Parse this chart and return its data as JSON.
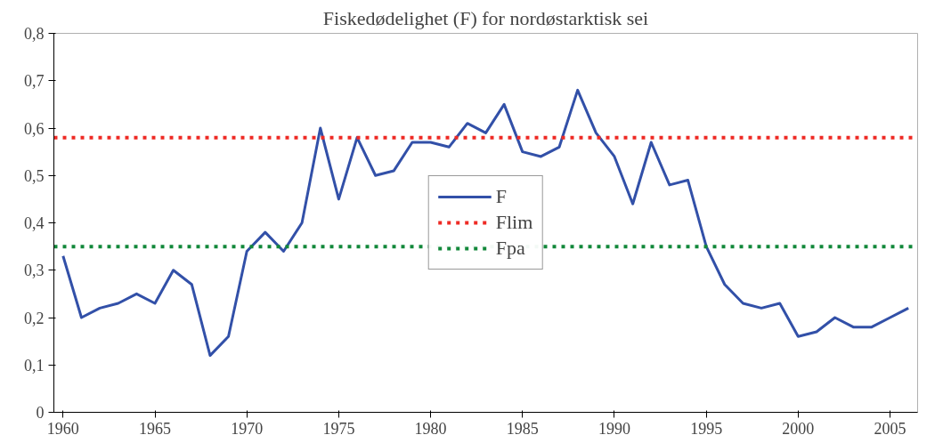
{
  "chart_data": {
    "type": "line",
    "title": "Fiskedødelighet (F) for nordøstarktisk sei",
    "x": [
      1960,
      1961,
      1962,
      1963,
      1964,
      1965,
      1966,
      1967,
      1968,
      1969,
      1970,
      1971,
      1972,
      1973,
      1974,
      1975,
      1976,
      1977,
      1978,
      1979,
      1980,
      1981,
      1982,
      1983,
      1984,
      1985,
      1986,
      1987,
      1988,
      1989,
      1990,
      1991,
      1992,
      1993,
      1994,
      1995,
      1996,
      1997,
      1998,
      1999,
      2000,
      2001,
      2002,
      2003,
      2004,
      2005,
      2006
    ],
    "series": [
      {
        "name": "F",
        "color": "#3250a8",
        "values": [
          0.33,
          0.2,
          0.22,
          0.23,
          0.25,
          0.23,
          0.3,
          0.27,
          0.12,
          0.16,
          0.34,
          0.38,
          0.34,
          0.4,
          0.6,
          0.45,
          0.58,
          0.5,
          0.51,
          0.57,
          0.57,
          0.56,
          0.61,
          0.59,
          0.65,
          0.55,
          0.54,
          0.56,
          0.68,
          0.59,
          0.54,
          0.44,
          0.57,
          0.48,
          0.49,
          0.35,
          0.27,
          0.23,
          0.22,
          0.23,
          0.16,
          0.17,
          0.2,
          0.18,
          0.18,
          0.2,
          0.22
        ]
      }
    ],
    "ref_lines": [
      {
        "axis": "y",
        "value": 0.58,
        "label": "Flim",
        "color": "#ee2a24",
        "line_style": "dashed"
      },
      {
        "axis": "y",
        "value": 0.35,
        "label": "Fpa",
        "color": "#12883a",
        "line_style": "dashed"
      }
    ],
    "xlim": [
      1959.5,
      2006.5
    ],
    "xticks": [
      1960,
      1965,
      1970,
      1975,
      1980,
      1985,
      1990,
      1995,
      2000,
      2005
    ],
    "ylim": [
      0,
      0.8
    ],
    "yticks": [
      0,
      {
        "value": 0.1,
        "label": "0,1"
      },
      {
        "value": 0.2,
        "label": "0,2"
      },
      {
        "value": 0.3,
        "label": "0,3"
      },
      {
        "value": 0.4,
        "label": "0,4"
      },
      {
        "value": 0.5,
        "label": "0,5"
      },
      {
        "value": 0.6,
        "label": "0,6"
      },
      {
        "value": 0.7,
        "label": "0,7"
      },
      {
        "value": 0.8,
        "label": "0,8"
      }
    ],
    "grid": false,
    "legend": "center",
    "line_style": "solid",
    "marker": "none"
  }
}
